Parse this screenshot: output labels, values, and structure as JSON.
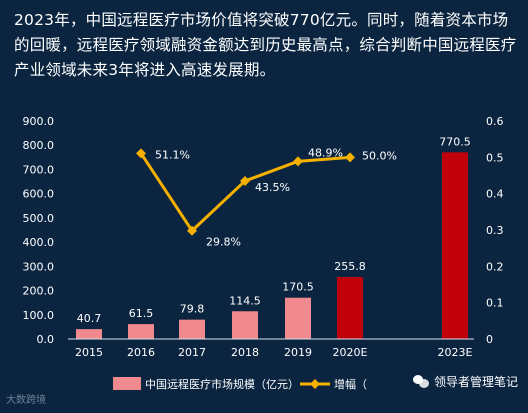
{
  "headline": "2023年，中国远程医疗市场价值将突破770亿元。同时，随着资本市场的回暖，远程医疗领域融资金额达到历史最高点，综合判断中国远程医疗产业领域未来3年将进入高速发展期。",
  "watermark_left": "大数跨境",
  "watermark_right": "领导者管理笔记",
  "colors": {
    "background": "#0b2540",
    "bar_normal": "#f08a8f",
    "bar_highlight": "#c0000b",
    "line": "#f5b000"
  },
  "chart_data": {
    "type": "bar",
    "categories": [
      "2015",
      "2016",
      "2017",
      "2018",
      "2019",
      "2020E",
      "2023E"
    ],
    "series": [
      {
        "name": "中国远程医疗市场规模（亿元）",
        "type": "bar",
        "axis": "left",
        "values": [
          40.7,
          61.5,
          79.8,
          114.5,
          170.5,
          255.8,
          770.5
        ],
        "labels": [
          "40.7",
          "61.5",
          "79.8",
          "114.5",
          "170.5",
          "255.8",
          "770.5"
        ],
        "highlight": [
          false,
          false,
          false,
          false,
          false,
          true,
          true
        ]
      },
      {
        "name": "增幅（%）",
        "type": "line",
        "axis": "right",
        "values": [
          null,
          0.511,
          0.298,
          0.435,
          0.489,
          0.5,
          null
        ],
        "labels": [
          "",
          "51.1%",
          "29.8%",
          "43.5%",
          "48.9%",
          "50.0%",
          ""
        ]
      }
    ],
    "y_left": {
      "ylim": [
        0,
        900
      ],
      "ticks": [
        "0.0",
        "100.0",
        "200.0",
        "300.0",
        "400.0",
        "500.0",
        "600.0",
        "700.0",
        "800.0",
        "900.0"
      ]
    },
    "y_right": {
      "ylim": [
        0,
        0.6
      ],
      "ticks": [
        "0",
        "0.1",
        "0.2",
        "0.3",
        "0.4",
        "0.5",
        "0.6"
      ]
    },
    "legend": {
      "position": "bottom",
      "items": [
        "中国远程医疗市场规模（亿元）",
        "增幅（"
      ]
    },
    "grid": false
  }
}
